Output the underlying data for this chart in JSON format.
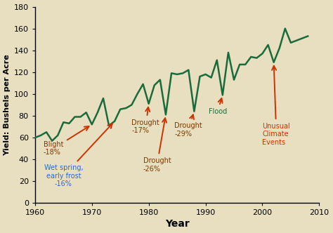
{
  "years": [
    1960,
    1961,
    1962,
    1963,
    1964,
    1965,
    1966,
    1967,
    1968,
    1969,
    1970,
    1971,
    1972,
    1973,
    1974,
    1975,
    1976,
    1977,
    1978,
    1979,
    1980,
    1981,
    1982,
    1983,
    1984,
    1985,
    1986,
    1987,
    1988,
    1989,
    1990,
    1991,
    1992,
    1993,
    1994,
    1995,
    1996,
    1997,
    1998,
    1999,
    2000,
    2001,
    2002,
    2003,
    2004,
    2005,
    2006,
    2007,
    2008
  ],
  "yields": [
    60,
    62,
    65,
    57,
    62,
    74,
    73,
    79,
    79,
    83,
    72,
    83,
    96,
    71,
    75,
    86,
    87,
    90,
    100,
    109,
    91,
    108,
    113,
    81,
    119,
    118,
    119,
    122,
    84,
    116,
    118,
    115,
    131,
    99,
    138,
    113,
    127,
    127,
    134,
    133,
    137,
    145,
    129,
    142,
    160,
    147,
    149,
    151,
    153
  ],
  "bg_color": "#e8dfc0",
  "line_color": "#1a6b3c",
  "arrow_color": "#cc3300",
  "dark_label_color": "#7a3800",
  "blue_label_color": "#3366cc",
  "flood_label_color": "#1a6b3c",
  "unusual_label_color": "#cc3300",
  "xlabel": "Year",
  "ylabel": "Yield: Bushels per Acre",
  "xlim": [
    1960,
    2010
  ],
  "ylim": [
    0,
    180
  ],
  "xticks": [
    1960,
    1970,
    1980,
    1990,
    2000,
    2010
  ],
  "yticks": [
    0,
    20,
    40,
    60,
    80,
    100,
    120,
    140,
    160,
    180
  ]
}
